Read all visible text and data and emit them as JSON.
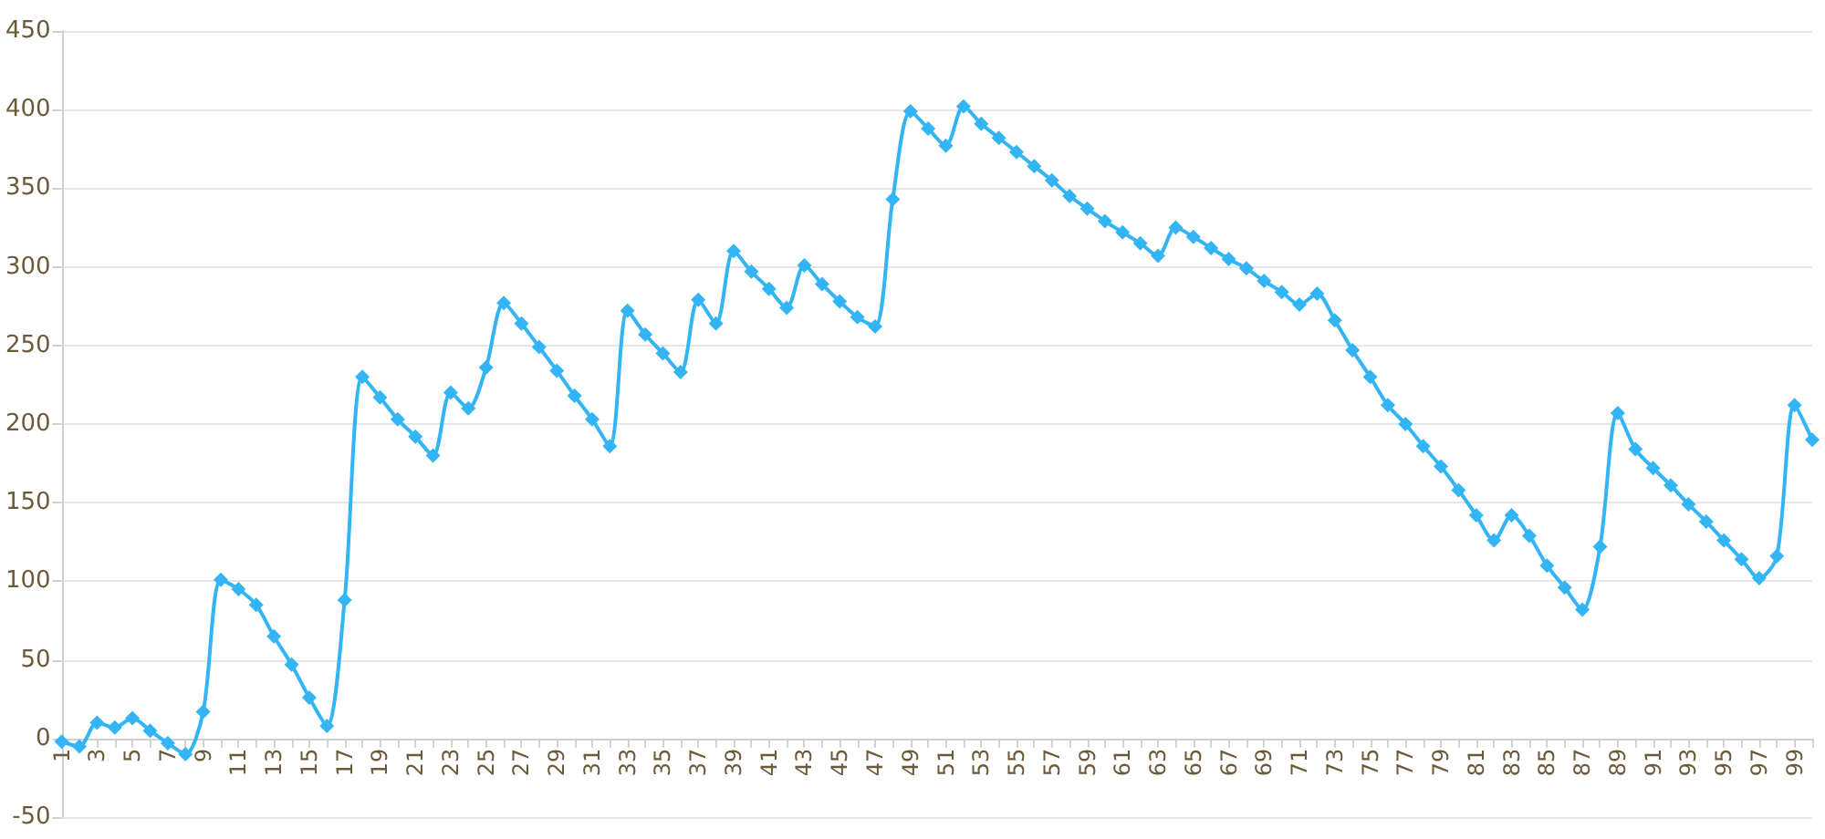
{
  "chart_data": {
    "type": "line",
    "categories": [
      "1",
      null,
      "3",
      null,
      "5",
      null,
      "7",
      null,
      "9",
      null,
      "11",
      null,
      "13",
      null,
      "15",
      null,
      "17",
      null,
      "19",
      null,
      "21",
      null,
      "23",
      null,
      "25",
      null,
      "27",
      null,
      "29",
      null,
      "31",
      null,
      "33",
      null,
      "35",
      null,
      "37",
      null,
      "39",
      null,
      "41",
      null,
      "43",
      null,
      "45",
      null,
      "47",
      null,
      "49",
      null,
      "51",
      null,
      "53",
      null,
      "55",
      null,
      "57",
      null,
      "59",
      null,
      "61",
      null,
      "63",
      null,
      "65",
      null,
      "67",
      null,
      "69",
      null,
      "71",
      null,
      "73",
      null,
      "75",
      null,
      "77",
      null,
      "79",
      null,
      "81",
      null,
      "83",
      null,
      "85",
      null,
      "87",
      null,
      "89",
      null,
      "91",
      null,
      "93",
      null,
      "95",
      null,
      "97",
      null,
      "99",
      null
    ],
    "series": [
      {
        "color": "#33b5f5",
        "values": [
          -2,
          -5,
          10,
          7,
          13,
          5,
          -3,
          -10,
          17,
          101,
          95,
          85,
          65,
          47,
          26,
          8,
          88,
          230,
          217,
          203,
          192,
          180,
          220,
          210,
          236,
          277,
          264,
          249,
          234,
          218,
          203,
          186,
          272,
          257,
          245,
          233,
          279,
          264,
          310,
          297,
          286,
          274,
          301,
          289,
          278,
          268,
          262,
          343,
          399,
          388,
          377,
          402,
          391,
          382,
          373,
          364,
          355,
          345,
          337,
          329,
          322,
          315,
          307,
          325,
          319,
          312,
          305,
          299,
          291,
          284,
          276,
          283,
          266,
          247,
          230,
          212,
          200,
          186,
          173,
          158,
          142,
          126,
          142,
          129,
          110,
          96,
          82,
          122,
          207,
          184,
          172,
          161,
          149,
          138,
          126,
          114,
          102,
          116,
          212,
          190
        ]
      }
    ],
    "ylim": [
      -50,
      450
    ],
    "yticks": [
      -50,
      0,
      50,
      100,
      150,
      200,
      250,
      300,
      350,
      400,
      450
    ],
    "grid": "y",
    "marker": "diamond",
    "line_style": "solid"
  }
}
